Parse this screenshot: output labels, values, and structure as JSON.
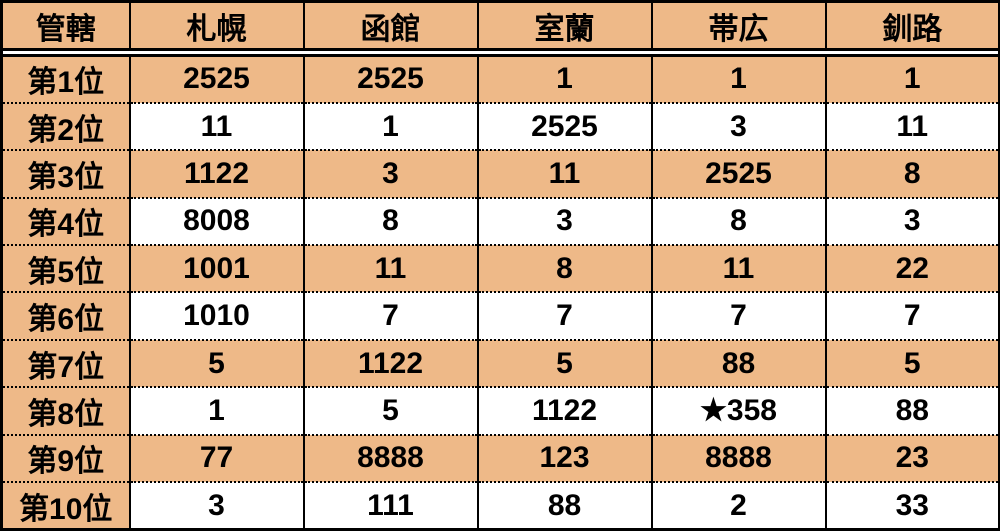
{
  "table": {
    "header_label": "管轄",
    "columns": [
      "札幌",
      "函館",
      "室蘭",
      "帯広",
      "釧路"
    ],
    "rank_labels": [
      "第1位",
      "第2位",
      "第3位",
      "第4位",
      "第5位",
      "第6位",
      "第7位",
      "第8位",
      "第9位",
      "第10位"
    ],
    "rows": [
      [
        "2525",
        "2525",
        "1",
        "1",
        "1"
      ],
      [
        "11",
        "1",
        "2525",
        "3",
        "11"
      ],
      [
        "1122",
        "3",
        "11",
        "2525",
        "8"
      ],
      [
        "8008",
        "8",
        "3",
        "8",
        "3"
      ],
      [
        "1001",
        "11",
        "8",
        "11",
        "22"
      ],
      [
        "1010",
        "7",
        "7",
        "7",
        "7"
      ],
      [
        "5",
        "1122",
        "5",
        "88",
        "5"
      ],
      [
        "1",
        "5",
        "1122",
        "★358",
        "88"
      ],
      [
        "77",
        "8888",
        "123",
        "8888",
        "23"
      ],
      [
        "3",
        "111",
        "88",
        "2",
        "33"
      ]
    ],
    "colors": {
      "header_bg": "#eeb988",
      "row_odd_bg": "#eeb988",
      "row_even_bg": "#ffffff",
      "border": "#000000",
      "text": "#000000"
    },
    "font_size_pt": 22,
    "font_weight": "bold"
  }
}
